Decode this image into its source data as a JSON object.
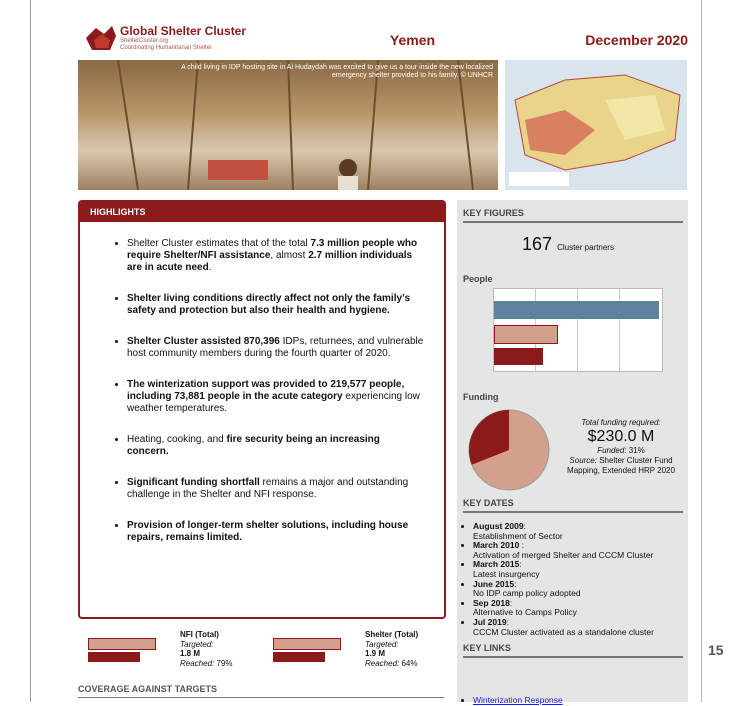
{
  "header": {
    "logo_title": "Global Shelter Cluster",
    "logo_sub1": "ShelterCluster.org",
    "logo_sub2": "Coordinating Humanitarian Shelter",
    "country": "Yemen",
    "date": "December 2020"
  },
  "photo_caption": "A child living in IDP hosting site in Al Hudaydah was excited to give us a tour inside the new localized emergency shelter provided to his family. © UNHCR",
  "highlights": {
    "title": "HIGHLIGHTS",
    "items": [
      [
        {
          "text": "Shelter Cluster estimates that of the total ",
          "bold": false
        },
        {
          "text": "7.3 million people who require Shelter/NFI assistance",
          "bold": true
        },
        {
          "text": ", almost ",
          "bold": false
        },
        {
          "text": "2.7 million individuals are in acute need",
          "bold": true
        },
        {
          "text": ".",
          "bold": false
        }
      ],
      [
        {
          "text": "Shelter living conditions directly affect not only the family’s safety and protection but also their health and hygiene.",
          "bold": true
        }
      ],
      [
        {
          "text": "Shelter Cluster assisted 870,396",
          "bold": true
        },
        {
          "text": " IDPs, returnees, and vulnerable host community members during the fourth quarter of 2020.",
          "bold": false
        }
      ],
      [
        {
          "text": "The winterization support was provided to 219,577 people, including 73,881 people in the acute category",
          "bold": true
        },
        {
          "text": " experiencing low weather temperatures.",
          "bold": false
        }
      ],
      [
        {
          "text": "Heating, cooking, and ",
          "bold": false
        },
        {
          "text": "fire security being an increasing concern.",
          "bold": true
        }
      ],
      [
        {
          "text": "Significant funding shortfall",
          "bold": true
        },
        {
          "text": " remains a major and outstanding challenge in the Shelter and NFI response.",
          "bold": false
        }
      ],
      [
        {
          "text": "Provision of longer-term shelter solutions, including house repairs, remains limited.",
          "bold": true
        }
      ]
    ]
  },
  "targets": [
    {
      "name": "NFI (Total)",
      "targeted_label": "Targeted:",
      "targeted": "1.8 M",
      "reached_label": "Reached:",
      "reached": "79%"
    },
    {
      "name": "Shelter (Total)",
      "targeted_label": "Targeted:",
      "targeted": "1.9 M",
      "reached_label": "Reached:",
      "reached": "64%"
    }
  ],
  "coverage_title": "COVERAGE AGAINST TARGETS",
  "key_figures": {
    "title": "KEY FIGURES",
    "partners": "167",
    "partners_label": "Cluster partners",
    "people_title": "People",
    "funding_title": "Funding",
    "required_label": "Total funding required:",
    "required": "$230.0 M",
    "funded_label": "Funded:",
    "funded": {
      "value": 31,
      "label": "31%"
    },
    "source_label": "Source:",
    "source": "Shelter Cluster Fund Mapping, Extended HRP 2020"
  },
  "key_dates": {
    "title": "KEY DATES",
    "items": [
      {
        "date": "August 2009",
        "text": "Establishment of Sector"
      },
      {
        "date": "March 2010 ",
        "text": "Activation of merged Shelter and CCCM Cluster"
      },
      {
        "date": "March 2015",
        "text": "Latest insurgency"
      },
      {
        "date": "June 2015",
        "text": "No IDP camp policy adopted"
      },
      {
        "date": "Sep 2018",
        "text": "Alternative to Camps Policy"
      },
      {
        "date": "Jul 2019",
        "text": "CCCM Cluster activated as a standalone cluster"
      }
    ]
  },
  "key_links": {
    "title": "KEY LINKS",
    "items": [
      "Winterization Response"
    ]
  },
  "page_number": "15"
}
